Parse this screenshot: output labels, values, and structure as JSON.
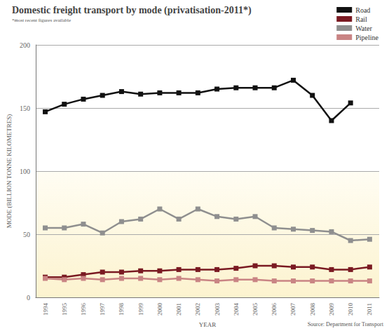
{
  "chart_data": {
    "type": "line",
    "title": "Domestic freight transport by mode (privatisation-2011*)",
    "subtitle": "*most recent figures available",
    "x_label": "YEAR",
    "y_label": "MODE (BILLION TONNE KILOMETRES)",
    "annotations": [
      "Source: Department for Transport"
    ],
    "categories": [
      "1994",
      "1995",
      "1996",
      "1997",
      "1998",
      "1999",
      "2000",
      "2001",
      "2002",
      "2003",
      "2004",
      "2005",
      "2006",
      "2007",
      "2008",
      "2009",
      "2010",
      "2011"
    ],
    "series": [
      {
        "name": "Road",
        "color": "#111111",
        "values": [
          147,
          153,
          157,
          160,
          163,
          161,
          162,
          162,
          162,
          165,
          166,
          166,
          166,
          172,
          160,
          140,
          154,
          null
        ]
      },
      {
        "name": "Rail",
        "color": "#7a1a22",
        "values": [
          16,
          16,
          18,
          20,
          20,
          21,
          21,
          22,
          22,
          22,
          23,
          25,
          25,
          24,
          24,
          22,
          22,
          24
        ]
      },
      {
        "name": "Water",
        "color": "#8f8f8f",
        "values": [
          55,
          55,
          58,
          51,
          60,
          62,
          70,
          62,
          70,
          64,
          62,
          64,
          55,
          54,
          53,
          52,
          45,
          46
        ]
      },
      {
        "name": "Pipeline",
        "color": "#c98484",
        "values": [
          15,
          14,
          15,
          14,
          15,
          15,
          14,
          15,
          14,
          13,
          14,
          14,
          13,
          13,
          13,
          13,
          13,
          13
        ]
      }
    ],
    "ylim": [
      0,
      200
    ],
    "yticks": [
      0,
      50,
      100,
      150,
      200
    ],
    "grid": true,
    "legend": "top-right",
    "marker": "square"
  }
}
